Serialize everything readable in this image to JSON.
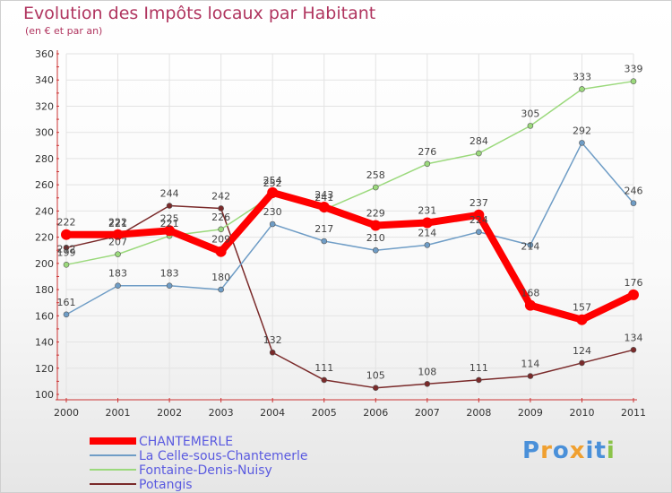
{
  "chart_data": {
    "type": "line",
    "title": "Evolution des Impôts locaux par Habitant",
    "subtitle": "(en € et par an)",
    "xlabel": "",
    "ylabel": "",
    "ylim": [
      100,
      360
    ],
    "yticks": [
      100,
      120,
      140,
      160,
      180,
      200,
      220,
      240,
      260,
      280,
      300,
      320,
      340,
      360
    ],
    "categories": [
      "2000",
      "2001",
      "2002",
      "2003",
      "2004",
      "2005",
      "2006",
      "2007",
      "2008",
      "2009",
      "2010",
      "2011"
    ],
    "grid": true,
    "legend_position": "bottom-left",
    "series": [
      {
        "name": "Potangis",
        "color": "#7a2a2a",
        "values": [
          212,
          221,
          244,
          242,
          132,
          111,
          105,
          108,
          111,
          114,
          124,
          134
        ]
      },
      {
        "name": "La Celle-sous-Chantemerle",
        "color": "#6f9dc6",
        "values": [
          161,
          183,
          183,
          180,
          230,
          217,
          210,
          214,
          224,
          214,
          292,
          246
        ]
      },
      {
        "name": "Fontaine-Denis-Nuisy",
        "color": "#9bd97c",
        "values": [
          199,
          207,
          221,
          226,
          252,
          241,
          258,
          276,
          284,
          305,
          333,
          339
        ]
      },
      {
        "name": "CHANTEMERLE",
        "color": "#ff0000",
        "values": [
          222,
          222,
          225,
          209,
          254,
          243,
          229,
          231,
          237,
          168,
          157,
          176
        ]
      }
    ],
    "legend": [
      "CHANTEMERLE",
      "La Celle-sous-Chantemerle",
      "Fontaine-Denis-Nuisy",
      "Potangis"
    ]
  },
  "colors": {
    "title": "#b0355f",
    "axis_red": "#cc3333",
    "grid": "#e3e3e3",
    "legend_text": "#5a5ae0"
  },
  "logo": {
    "letters": [
      "P",
      "r",
      "o",
      "x",
      "i",
      "t",
      "i"
    ],
    "letter_colors": [
      "#4a90d9",
      "#f0a030",
      "#4a90d9",
      "#f0a030",
      "#4a90d9",
      "#4a90d9",
      "#8bc34a"
    ]
  }
}
